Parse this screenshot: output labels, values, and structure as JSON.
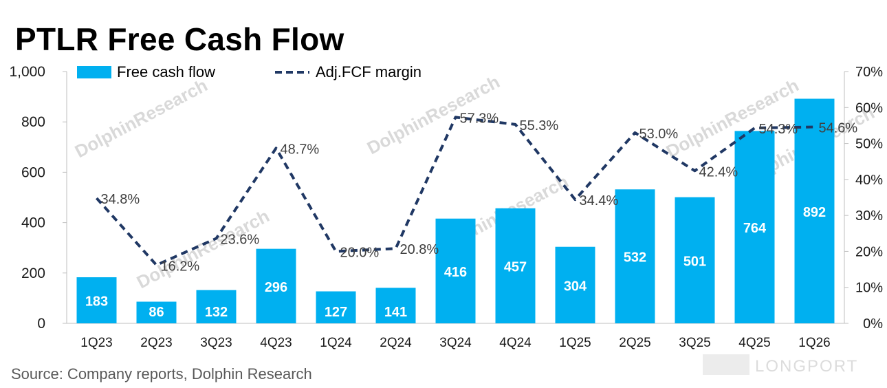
{
  "title": "PTLR Free Cash Flow",
  "source": "Source:  Company reports, Dolphin Research",
  "watermarks": [
    "DolphinResearch",
    "DolphinResearch",
    "DolphinResearch",
    "DolphinResearch",
    "DolphinResearch",
    "DolphinResearch"
  ],
  "brand_watermark": "LONGPORT",
  "colors": {
    "bar": "#00b0f0",
    "line": "#203864"
  },
  "chart_data": {
    "type": "bar",
    "categories": [
      "1Q23",
      "2Q23",
      "3Q23",
      "4Q23",
      "1Q24",
      "2Q24",
      "3Q24",
      "4Q24",
      "1Q25",
      "2Q25",
      "3Q25",
      "4Q25",
      "1Q26"
    ],
    "series": [
      {
        "name": "Free cash flow",
        "type": "bar",
        "axis": "left",
        "values": [
          183,
          86,
          132,
          296,
          127,
          141,
          416,
          457,
          304,
          532,
          501,
          764,
          892
        ],
        "labels": [
          "183",
          "86",
          "132",
          "296",
          "127",
          "141",
          "416",
          "457",
          "304",
          "532",
          "501",
          "764",
          "892"
        ]
      },
      {
        "name": "Adj.FCF margin",
        "type": "line",
        "style": "dashed",
        "axis": "right",
        "values": [
          34.8,
          16.2,
          23.6,
          48.7,
          20.0,
          20.8,
          57.3,
          55.3,
          34.4,
          53.0,
          42.4,
          54.3,
          54.6
        ],
        "labels": [
          "34.8%",
          "16.2%",
          "23.6%",
          "48.7%",
          "20.0%",
          "20.8%",
          "57.3%",
          "55.3%",
          "34.4%",
          "53.0%",
          "42.4%",
          "54.3%",
          "54.6%"
        ]
      }
    ],
    "y_left": {
      "min": 0,
      "max": 1000,
      "ticks": [
        0,
        200,
        400,
        600,
        800,
        1000
      ],
      "tick_labels": [
        "0",
        "200",
        "400",
        "600",
        "800",
        "1,000"
      ]
    },
    "y_right": {
      "min": 0,
      "max": 70,
      "ticks": [
        0,
        10,
        20,
        30,
        40,
        50,
        60,
        70
      ],
      "tick_labels": [
        "0%",
        "10%",
        "20%",
        "30%",
        "40%",
        "50%",
        "60%",
        "70%"
      ]
    },
    "legend_position": "top",
    "grid": false
  }
}
